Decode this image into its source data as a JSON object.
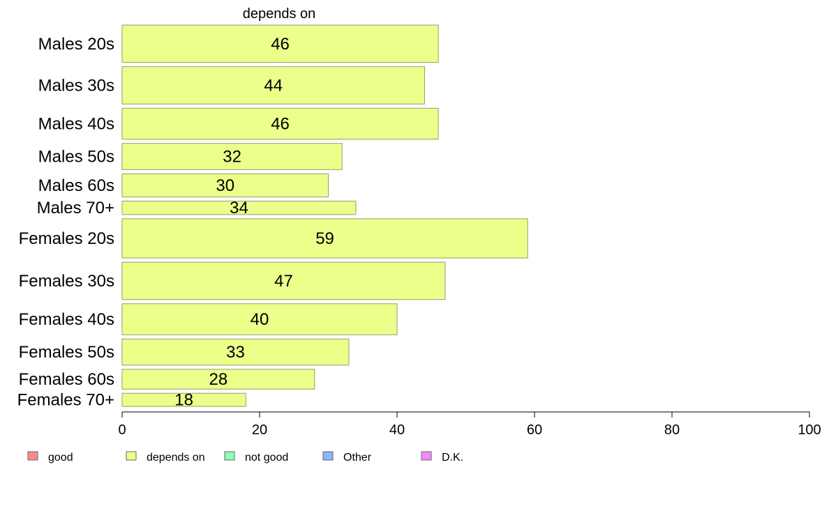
{
  "chart_data": {
    "type": "bar",
    "orientation": "horizontal",
    "title": "depends on",
    "categories": [
      "Males 20s",
      "Males 30s",
      "Males 40s",
      "Males 50s",
      "Males 60s",
      "Males 70+",
      "Females 20s",
      "Females 30s",
      "Females 40s",
      "Females 50s",
      "Females 60s",
      "Females 70+"
    ],
    "values": [
      46,
      44,
      46,
      32,
      30,
      34,
      59,
      47,
      40,
      33,
      28,
      18
    ],
    "value_labels": [
      "46",
      "44",
      "46",
      "32",
      "30",
      "34",
      "59",
      "47",
      "40",
      "33",
      "28",
      "18"
    ],
    "bar_weights": [
      1.0,
      1.0,
      0.83,
      0.7,
      0.62,
      0.36,
      1.05,
      1.0,
      0.83,
      0.7,
      0.53,
      0.35
    ],
    "xlim": [
      0,
      100
    ],
    "xticks": [
      0,
      20,
      40,
      60,
      80,
      100
    ],
    "xtick_labels": [
      "0",
      "20",
      "40",
      "60",
      "80",
      "100"
    ],
    "xlabel": "",
    "ylabel": "",
    "grid": false,
    "legend_position": "bottom",
    "legend": [
      {
        "name": "good",
        "color": "#f88a8a"
      },
      {
        "name": "depends on",
        "color": "#ebff8a"
      },
      {
        "name": "not good",
        "color": "#8affb9"
      },
      {
        "name": "Other",
        "color": "#8ab8f8"
      },
      {
        "name": "D.K.",
        "color": "#f08af8"
      }
    ],
    "bar_color": "#ebff8a",
    "bar_edge_color": "#9a9a6a"
  }
}
